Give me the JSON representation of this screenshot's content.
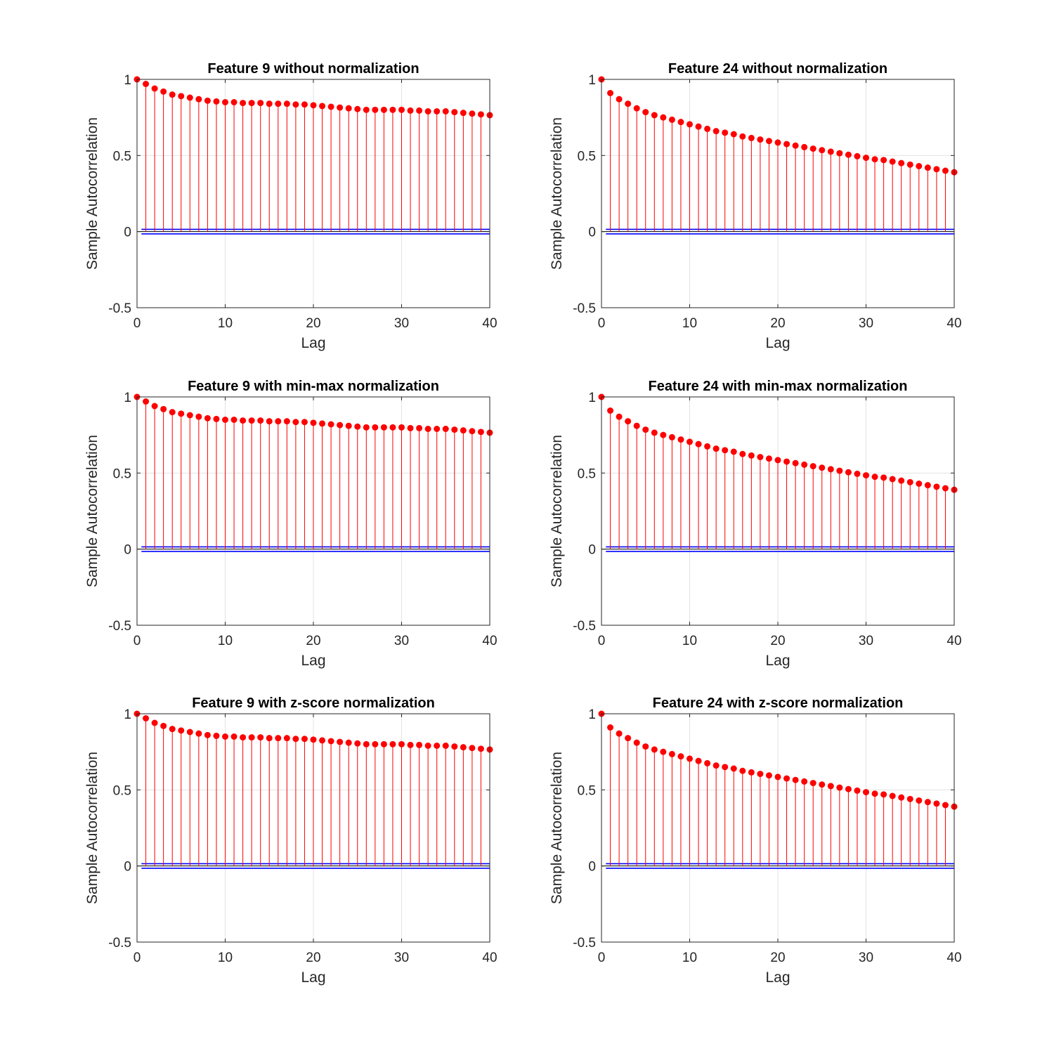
{
  "figure": {
    "subplots": [
      {
        "title": "Feature 9 without normalization",
        "xlabel": "Lag",
        "ylabel": "Sample Autocorrelation"
      },
      {
        "title": "Feature 24 without normalization",
        "xlabel": "Lag",
        "ylabel": "Sample Autocorrelation"
      },
      {
        "title": "Feature 9 with min-max normalization",
        "xlabel": "Lag",
        "ylabel": "Sample Autocorrelation"
      },
      {
        "title": "Feature 24 with min-max normalization",
        "xlabel": "Lag",
        "ylabel": "Sample Autocorrelation"
      },
      {
        "title": "Feature 9 with z-score normalization",
        "xlabel": "Lag",
        "ylabel": "Sample Autocorrelation"
      },
      {
        "title": "Feature 24 with z-score normalization",
        "xlabel": "Lag",
        "ylabel": "Sample Autocorrelation"
      }
    ]
  },
  "chart_data": [
    {
      "type": "stem",
      "title": "Feature 9 without normalization",
      "xlabel": "Lag",
      "ylabel": "Sample Autocorrelation",
      "xlim": [
        0,
        40
      ],
      "ylim": [
        -0.5,
        1
      ],
      "xticks": [
        "0",
        "10",
        "20",
        "30",
        "40"
      ],
      "yticks": [
        "-0.5",
        "0",
        "0.5",
        "1"
      ],
      "grid": true,
      "stem_color": "#ff0000",
      "bound_color": "#0000ff",
      "confidence_bounds": [
        0.015,
        -0.015
      ],
      "x": [
        0,
        1,
        2,
        3,
        4,
        5,
        6,
        7,
        8,
        9,
        10,
        11,
        12,
        13,
        14,
        15,
        16,
        17,
        18,
        19,
        20,
        21,
        22,
        23,
        24,
        25,
        26,
        27,
        28,
        29,
        30,
        31,
        32,
        33,
        34,
        35,
        36,
        37,
        38,
        39,
        40
      ],
      "values": [
        1.0,
        0.97,
        0.94,
        0.92,
        0.9,
        0.89,
        0.88,
        0.87,
        0.86,
        0.855,
        0.85,
        0.85,
        0.845,
        0.845,
        0.845,
        0.84,
        0.84,
        0.84,
        0.835,
        0.835,
        0.83,
        0.825,
        0.82,
        0.815,
        0.81,
        0.805,
        0.8,
        0.8,
        0.8,
        0.8,
        0.8,
        0.795,
        0.795,
        0.79,
        0.79,
        0.79,
        0.785,
        0.78,
        0.775,
        0.77,
        0.765
      ]
    },
    {
      "type": "stem",
      "title": "Feature 24 without normalization",
      "xlabel": "Lag",
      "ylabel": "Sample Autocorrelation",
      "xlim": [
        0,
        40
      ],
      "ylim": [
        -0.5,
        1
      ],
      "xticks": [
        "0",
        "10",
        "20",
        "30",
        "40"
      ],
      "yticks": [
        "-0.5",
        "0",
        "0.5",
        "1"
      ],
      "grid": true,
      "stem_color": "#ff0000",
      "bound_color": "#0000ff",
      "confidence_bounds": [
        0.015,
        -0.015
      ],
      "x": [
        0,
        1,
        2,
        3,
        4,
        5,
        6,
        7,
        8,
        9,
        10,
        11,
        12,
        13,
        14,
        15,
        16,
        17,
        18,
        19,
        20,
        21,
        22,
        23,
        24,
        25,
        26,
        27,
        28,
        29,
        30,
        31,
        32,
        33,
        34,
        35,
        36,
        37,
        38,
        39,
        40
      ],
      "values": [
        1.0,
        0.91,
        0.87,
        0.84,
        0.81,
        0.785,
        0.765,
        0.75,
        0.735,
        0.72,
        0.705,
        0.69,
        0.675,
        0.66,
        0.65,
        0.64,
        0.625,
        0.615,
        0.605,
        0.595,
        0.585,
        0.575,
        0.565,
        0.555,
        0.545,
        0.535,
        0.525,
        0.515,
        0.505,
        0.495,
        0.485,
        0.475,
        0.47,
        0.46,
        0.45,
        0.44,
        0.43,
        0.42,
        0.41,
        0.4,
        0.39
      ]
    },
    {
      "type": "stem",
      "title": "Feature 9 with min-max normalization",
      "xlabel": "Lag",
      "ylabel": "Sample Autocorrelation",
      "xlim": [
        0,
        40
      ],
      "ylim": [
        -0.5,
        1
      ],
      "xticks": [
        "0",
        "10",
        "20",
        "30",
        "40"
      ],
      "yticks": [
        "-0.5",
        "0",
        "0.5",
        "1"
      ],
      "grid": true,
      "stem_color": "#ff0000",
      "bound_color": "#0000ff",
      "confidence_bounds": [
        0.015,
        -0.015
      ],
      "x": [
        0,
        1,
        2,
        3,
        4,
        5,
        6,
        7,
        8,
        9,
        10,
        11,
        12,
        13,
        14,
        15,
        16,
        17,
        18,
        19,
        20,
        21,
        22,
        23,
        24,
        25,
        26,
        27,
        28,
        29,
        30,
        31,
        32,
        33,
        34,
        35,
        36,
        37,
        38,
        39,
        40
      ],
      "values": [
        1.0,
        0.97,
        0.94,
        0.92,
        0.9,
        0.89,
        0.88,
        0.87,
        0.86,
        0.855,
        0.85,
        0.85,
        0.845,
        0.845,
        0.845,
        0.84,
        0.84,
        0.84,
        0.835,
        0.835,
        0.83,
        0.825,
        0.82,
        0.815,
        0.81,
        0.805,
        0.8,
        0.8,
        0.8,
        0.8,
        0.8,
        0.795,
        0.795,
        0.79,
        0.79,
        0.79,
        0.785,
        0.78,
        0.775,
        0.77,
        0.765
      ]
    },
    {
      "type": "stem",
      "title": "Feature 24 with min-max normalization",
      "xlabel": "Lag",
      "ylabel": "Sample Autocorrelation",
      "xlim": [
        0,
        40
      ],
      "ylim": [
        -0.5,
        1
      ],
      "xticks": [
        "0",
        "10",
        "20",
        "30",
        "40"
      ],
      "yticks": [
        "-0.5",
        "0",
        "0.5",
        "1"
      ],
      "grid": true,
      "stem_color": "#ff0000",
      "bound_color": "#0000ff",
      "confidence_bounds": [
        0.015,
        -0.015
      ],
      "x": [
        0,
        1,
        2,
        3,
        4,
        5,
        6,
        7,
        8,
        9,
        10,
        11,
        12,
        13,
        14,
        15,
        16,
        17,
        18,
        19,
        20,
        21,
        22,
        23,
        24,
        25,
        26,
        27,
        28,
        29,
        30,
        31,
        32,
        33,
        34,
        35,
        36,
        37,
        38,
        39,
        40
      ],
      "values": [
        1.0,
        0.91,
        0.87,
        0.84,
        0.81,
        0.785,
        0.765,
        0.75,
        0.735,
        0.72,
        0.705,
        0.69,
        0.675,
        0.66,
        0.65,
        0.64,
        0.625,
        0.615,
        0.605,
        0.595,
        0.585,
        0.575,
        0.565,
        0.555,
        0.545,
        0.535,
        0.525,
        0.515,
        0.505,
        0.495,
        0.485,
        0.475,
        0.47,
        0.46,
        0.45,
        0.44,
        0.43,
        0.42,
        0.41,
        0.4,
        0.39
      ]
    },
    {
      "type": "stem",
      "title": "Feature 9 with z-score normalization",
      "xlabel": "Lag",
      "ylabel": "Sample Autocorrelation",
      "xlim": [
        0,
        40
      ],
      "ylim": [
        -0.5,
        1
      ],
      "xticks": [
        "0",
        "10",
        "20",
        "30",
        "40"
      ],
      "yticks": [
        "-0.5",
        "0",
        "0.5",
        "1"
      ],
      "grid": true,
      "stem_color": "#ff0000",
      "bound_color": "#0000ff",
      "confidence_bounds": [
        0.015,
        -0.015
      ],
      "x": [
        0,
        1,
        2,
        3,
        4,
        5,
        6,
        7,
        8,
        9,
        10,
        11,
        12,
        13,
        14,
        15,
        16,
        17,
        18,
        19,
        20,
        21,
        22,
        23,
        24,
        25,
        26,
        27,
        28,
        29,
        30,
        31,
        32,
        33,
        34,
        35,
        36,
        37,
        38,
        39,
        40
      ],
      "values": [
        1.0,
        0.97,
        0.94,
        0.92,
        0.9,
        0.89,
        0.88,
        0.87,
        0.86,
        0.855,
        0.85,
        0.85,
        0.845,
        0.845,
        0.845,
        0.84,
        0.84,
        0.84,
        0.835,
        0.835,
        0.83,
        0.825,
        0.82,
        0.815,
        0.81,
        0.805,
        0.8,
        0.8,
        0.8,
        0.8,
        0.8,
        0.795,
        0.795,
        0.79,
        0.79,
        0.79,
        0.785,
        0.78,
        0.775,
        0.77,
        0.765
      ]
    },
    {
      "type": "stem",
      "title": "Feature 24 with z-score normalization",
      "xlabel": "Lag",
      "ylabel": "Sample Autocorrelation",
      "xlim": [
        0,
        40
      ],
      "ylim": [
        -0.5,
        1
      ],
      "xticks": [
        "0",
        "10",
        "20",
        "30",
        "40"
      ],
      "yticks": [
        "-0.5",
        "0",
        "0.5",
        "1"
      ],
      "grid": true,
      "stem_color": "#ff0000",
      "bound_color": "#0000ff",
      "confidence_bounds": [
        0.015,
        -0.015
      ],
      "x": [
        0,
        1,
        2,
        3,
        4,
        5,
        6,
        7,
        8,
        9,
        10,
        11,
        12,
        13,
        14,
        15,
        16,
        17,
        18,
        19,
        20,
        21,
        22,
        23,
        24,
        25,
        26,
        27,
        28,
        29,
        30,
        31,
        32,
        33,
        34,
        35,
        36,
        37,
        38,
        39,
        40
      ],
      "values": [
        1.0,
        0.91,
        0.87,
        0.84,
        0.81,
        0.785,
        0.765,
        0.75,
        0.735,
        0.72,
        0.705,
        0.69,
        0.675,
        0.66,
        0.65,
        0.64,
        0.625,
        0.615,
        0.605,
        0.595,
        0.585,
        0.575,
        0.565,
        0.555,
        0.545,
        0.535,
        0.525,
        0.515,
        0.505,
        0.495,
        0.485,
        0.475,
        0.47,
        0.46,
        0.45,
        0.44,
        0.43,
        0.42,
        0.41,
        0.4,
        0.39
      ]
    }
  ]
}
